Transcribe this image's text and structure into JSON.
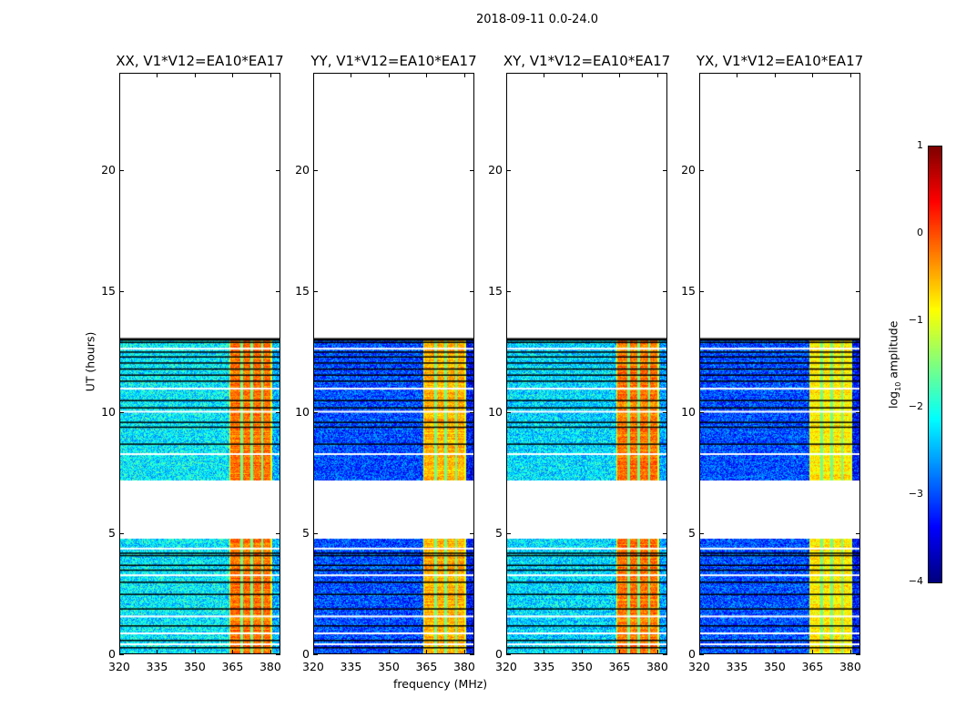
{
  "chart_data": {
    "type": "heatmap",
    "suptitle": "2018-09-11 0.0-24.0",
    "xlabel": "frequency (MHz)",
    "ylabel": "UT (hours)",
    "xlim": [
      320,
      384
    ],
    "ylim": [
      0,
      24
    ],
    "xticks": [
      320,
      335,
      350,
      365,
      380
    ],
    "yticks": [
      0,
      5,
      10,
      15,
      20
    ],
    "colorbar": {
      "label_prefix": "log",
      "label_sub": "10",
      "label_suffix": " amplitude",
      "range": [
        -4,
        1
      ],
      "ticks": [
        1,
        0,
        -1,
        -2,
        -3,
        -4
      ],
      "colormap": "jet"
    },
    "panels": [
      {
        "title": "XX, V1*V12=EA10*EA17",
        "background_level": -2.2,
        "band_level": -0.2
      },
      {
        "title": "YY, V1*V12=EA10*EA17",
        "background_level": -3.0,
        "band_level": -0.5
      },
      {
        "title": "XY, V1*V12=EA10*EA17",
        "background_level": -2.3,
        "band_level": -0.2
      },
      {
        "title": "YX, V1*V12=EA10*EA17",
        "background_level": -3.0,
        "band_level": -0.8
      }
    ],
    "data_time_ranges_hours": [
      [
        0.0,
        4.8
      ],
      [
        7.2,
        13.0
      ]
    ],
    "bright_band_mhz": [
      363.5,
      380.5
    ],
    "band_stripes_mhz": [
      368.5,
      372.5,
      376.5
    ],
    "flagged_rows_hours": [
      12.9,
      12.5,
      12.3,
      12.05,
      11.8,
      11.55,
      11.3,
      10.5,
      10.2,
      9.6,
      9.4,
      8.7,
      4.2,
      4.1,
      3.7,
      3.5,
      3.0,
      2.5,
      1.9,
      1.2,
      0.6,
      0.3
    ],
    "blank_rows_hours": [
      12.65,
      11.0,
      10.05,
      8.3,
      4.4,
      3.3,
      1.6,
      0.9,
      0.45
    ]
  }
}
